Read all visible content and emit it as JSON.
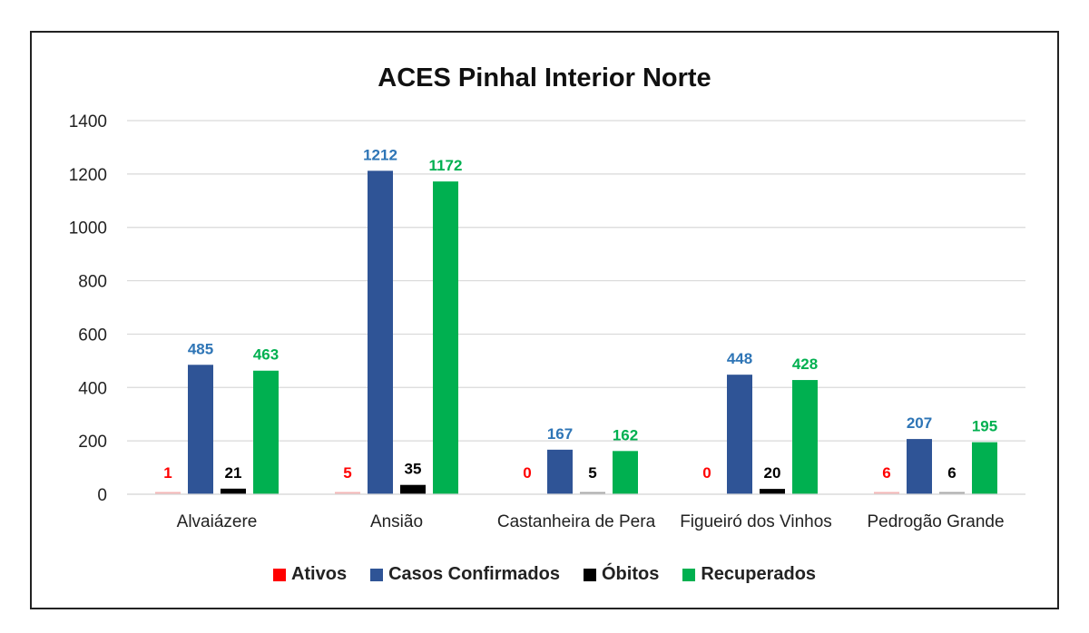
{
  "chart_data": {
    "type": "bar",
    "title": "ACES Pinhal Interior Norte",
    "categories": [
      "Alvaiázere",
      "Ansião",
      "Castanheira de Pera",
      "Figueiró dos Vinhos",
      "Pedrogão Grande"
    ],
    "series": [
      {
        "name": "Ativos",
        "color": "#ff0000",
        "values": [
          1,
          5,
          0,
          0,
          6
        ]
      },
      {
        "name": "Casos Confirmados",
        "color": "#2f5496",
        "values": [
          485,
          1212,
          167,
          448,
          207
        ]
      },
      {
        "name": "Óbitos",
        "color": "#000000",
        "values": [
          21,
          35,
          5,
          20,
          6
        ]
      },
      {
        "name": "Recuperados",
        "color": "#00b050",
        "values": [
          463,
          1172,
          162,
          428,
          195
        ]
      }
    ],
    "label_colors": [
      "#ff0000",
      "#2e75b6",
      "#000000",
      "#00b050"
    ],
    "ylim": [
      0,
      1400
    ],
    "yticks": [
      0,
      200,
      400,
      600,
      800,
      1000,
      1200,
      1400
    ],
    "grid": true,
    "legend_position": "bottom"
  }
}
